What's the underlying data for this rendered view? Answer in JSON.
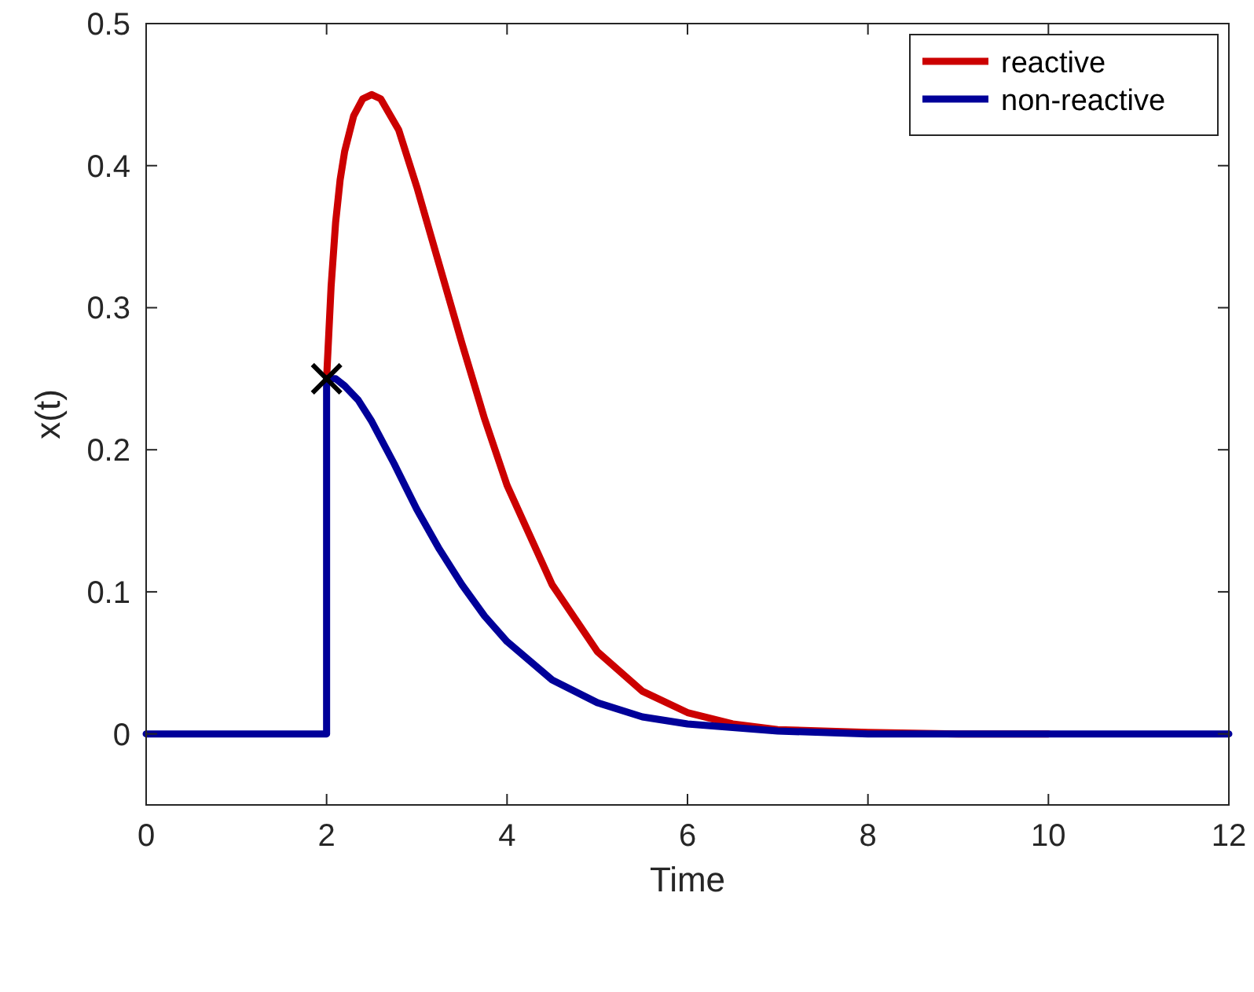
{
  "chart_data": {
    "type": "line",
    "xlabel": "Time",
    "ylabel": "x(t)",
    "xlim": [
      0,
      12
    ],
    "ylim": [
      -0.05,
      0.5
    ],
    "xticks": [
      0,
      2,
      4,
      6,
      8,
      10,
      12
    ],
    "yticks": [
      0,
      0.1,
      0.2,
      0.3,
      0.4,
      0.5
    ],
    "grid": false,
    "legend": "top right",
    "line_style": "solid",
    "marker": "none",
    "series": [
      {
        "name": "reactive",
        "color": "#cc0000",
        "x": [
          2,
          2.05,
          2.1,
          2.15,
          2.2,
          2.3,
          2.4,
          2.5,
          2.6,
          2.8,
          3,
          3.25,
          3.5,
          3.75,
          4,
          4.5,
          5,
          5.5,
          6,
          6.5,
          7,
          8,
          9,
          10
        ],
        "values": [
          0.25,
          0.315,
          0.36,
          0.39,
          0.41,
          0.435,
          0.447,
          0.45,
          0.447,
          0.425,
          0.385,
          0.33,
          0.275,
          0.222,
          0.175,
          0.105,
          0.058,
          0.03,
          0.015,
          0.007,
          0.003,
          0.001,
          0,
          0
        ]
      },
      {
        "name": "non-reactive",
        "color": "#000099",
        "x": [
          0,
          2,
          2,
          2.1,
          2.2,
          2.35,
          2.5,
          2.75,
          3,
          3.25,
          3.5,
          3.75,
          4,
          4.5,
          5,
          5.5,
          6,
          7,
          8,
          9,
          10,
          11,
          12
        ],
        "values": [
          0,
          0,
          0.25,
          0.25,
          0.245,
          0.235,
          0.22,
          0.19,
          0.158,
          0.13,
          0.105,
          0.083,
          0.065,
          0.038,
          0.022,
          0.012,
          0.007,
          0.002,
          0,
          0,
          0,
          0,
          0
        ]
      },
      {
        "type": "scatter",
        "color": "#000000",
        "marker": "cross",
        "x": [
          2
        ],
        "values": [
          0.25
        ]
      }
    ]
  }
}
